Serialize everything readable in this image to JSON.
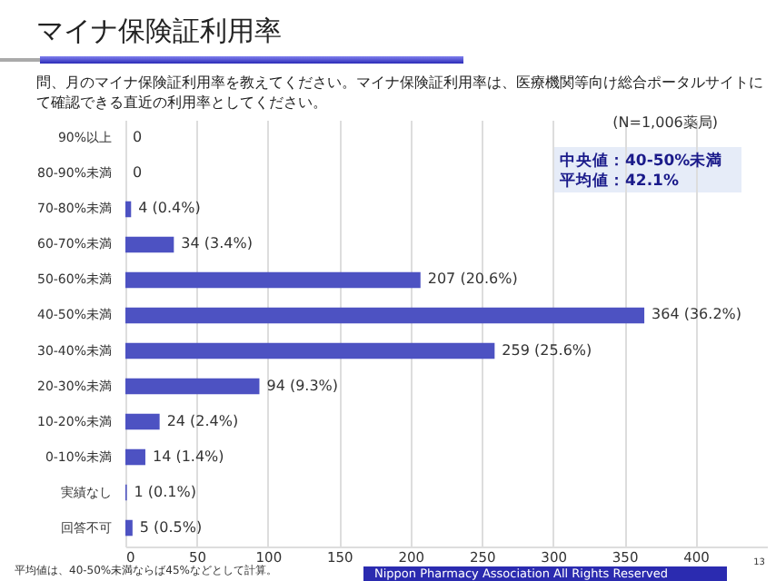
{
  "chart_data": {
    "type": "bar",
    "orientation": "horizontal",
    "title": "マイナ保険証利用率",
    "subtitle": "問、月のマイナ保険証利用率を教えてください。マイナ保険証利用率は、医療機関等向け総合ポータルサイトにて確認できる直近の利用率としてください。",
    "categories": [
      "90%以上",
      "80-90%未満",
      "70-80%未満",
      "60-70%未満",
      "50-60%未満",
      "40-50%未満",
      "30-40%未満",
      "20-30%未満",
      "10-20%未満",
      "0-10%未満",
      "実績なし",
      "回答不可"
    ],
    "values": [
      0,
      0,
      4,
      34,
      207,
      364,
      259,
      94,
      24,
      14,
      1,
      5
    ],
    "value_labels": [
      "0",
      "0",
      "4 (0.4%)",
      "34 (3.4%)",
      "207 (20.6%)",
      "364 (36.2%)",
      "259 (25.6%)",
      "94 (9.3%)",
      "24 (2.4%)",
      "14 (1.4%)",
      "1 (0.1%)",
      "5 (0.5%)"
    ],
    "color": "#4d52c2",
    "xlim": [
      0,
      450
    ],
    "xticks": [
      0,
      50,
      100,
      150,
      200,
      250,
      300,
      350,
      400
    ],
    "grid": "x",
    "annotations": [
      "(N=1,006薬局)",
      "中央値：40-50%未満",
      "平均値：42.1%",
      "平均値は、40-50%未満ならば45%などとして計算。",
      "Nippon Pharmacy Association All Rights Reserved",
      "13"
    ]
  }
}
